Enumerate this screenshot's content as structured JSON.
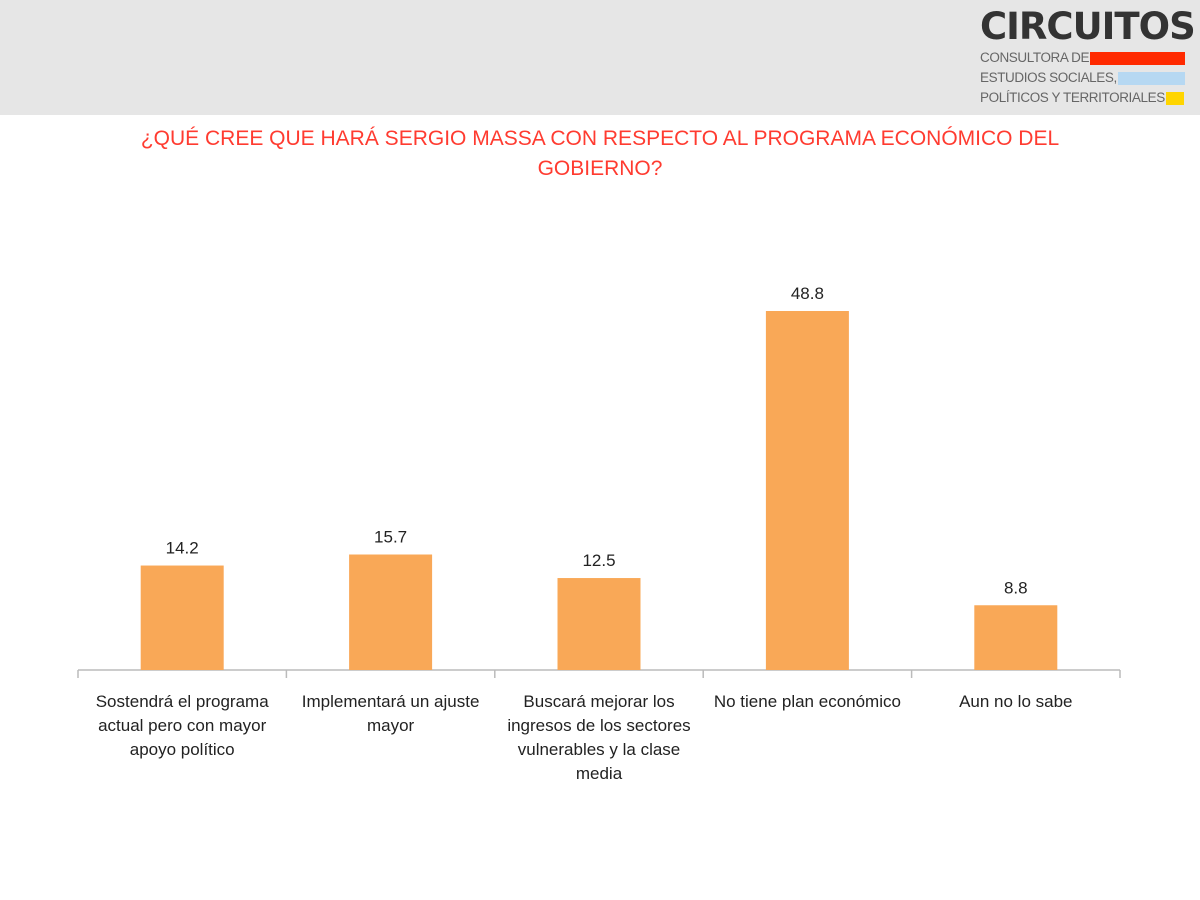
{
  "logo": {
    "name": "CIRCUITOS",
    "line1": "CONSULTORA DE",
    "line2": "ESTUDIOS SOCIALES,",
    "line3": "POLÍTICOS Y TERRITORIALES",
    "colors": [
      "#ff2a00",
      "#b6d8f2",
      "#ffd500"
    ]
  },
  "chart_data": {
    "type": "bar",
    "title": "¿QUÉ CREE QUE HARÁ SERGIO MASSA CON RESPECTO AL PROGRAMA ECONÓMICO DEL GOBIERNO?",
    "categories": [
      "Sostendrá el programa actual pero con mayor apoyo político",
      "Implementará un ajuste mayor",
      "Buscará mejorar los ingresos de los sectores vulnerables y la clase media",
      "No tiene plan económico",
      "Aun no lo sabe"
    ],
    "values": [
      14.2,
      15.7,
      12.5,
      48.8,
      8.8
    ],
    "value_labels": [
      "14.2",
      "15.7",
      "12.5",
      "48.8",
      "8.8"
    ],
    "xlabel": "",
    "ylabel": "",
    "ylim": [
      0,
      48.8
    ],
    "grid": false,
    "bar_color": "#f9a857",
    "title_color": "#ff3b30"
  }
}
